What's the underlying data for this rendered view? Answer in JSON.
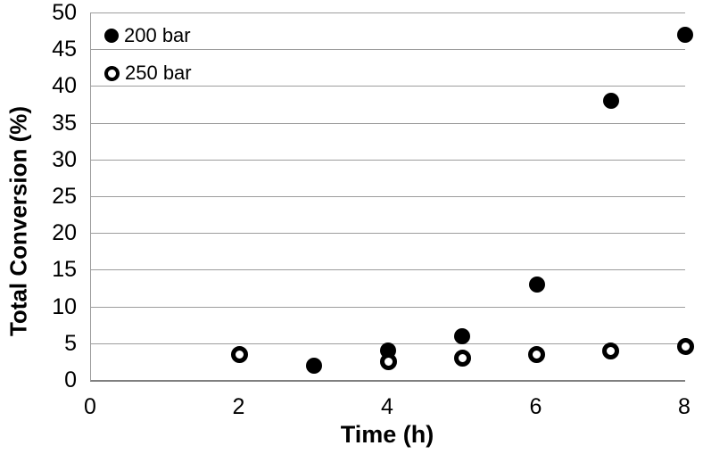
{
  "chart_data": {
    "type": "scatter",
    "title": "",
    "xlabel": "Time (h)",
    "ylabel": "Total Conversion (%)",
    "xlim": [
      0,
      8
    ],
    "ylim": [
      0,
      50
    ],
    "x_ticks": [
      0,
      2,
      4,
      6,
      8
    ],
    "y_ticks": [
      0,
      5,
      10,
      15,
      20,
      25,
      30,
      35,
      40,
      45,
      50
    ],
    "grid": "horizontal-only",
    "legend_position": "inside-top-left",
    "series": [
      {
        "name": "200 bar",
        "marker": "filled-circle",
        "color": "#000000",
        "points": [
          [
            3,
            2
          ],
          [
            4,
            4
          ],
          [
            5,
            6
          ],
          [
            6,
            13
          ],
          [
            7,
            38
          ],
          [
            8,
            47
          ]
        ]
      },
      {
        "name": "250 bar",
        "marker": "open-circle",
        "color": "#000000",
        "points": [
          [
            2,
            3.5
          ],
          [
            4,
            2.5
          ],
          [
            5,
            3
          ],
          [
            6,
            3.5
          ],
          [
            7,
            4
          ],
          [
            8,
            4.5
          ]
        ]
      }
    ],
    "colors": {
      "background": "#ffffff",
      "text": "#000000",
      "gridline": "#9d9d9d",
      "axis_line": "#808080",
      "marker": "#000000"
    }
  }
}
